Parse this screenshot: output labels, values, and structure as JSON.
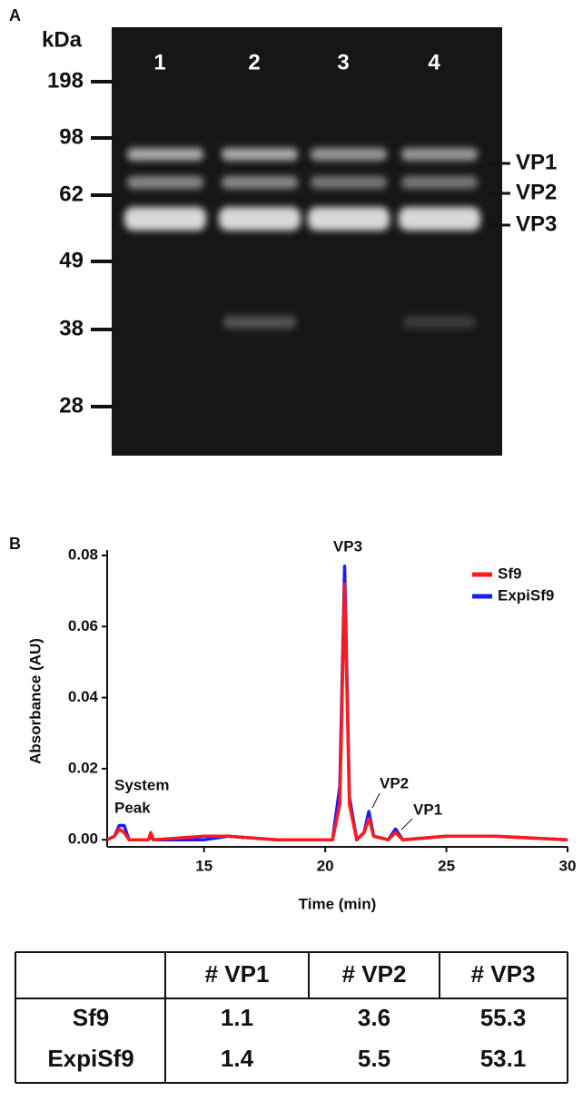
{
  "panel_a": {
    "label": "A",
    "unit_label": "kDa",
    "markers": [
      198,
      98,
      62,
      49,
      38,
      28
    ],
    "lanes": [
      "1",
      "2",
      "3",
      "4"
    ],
    "bands": [
      "VP1",
      "VP2",
      "VP3"
    ]
  },
  "panel_b": {
    "label": "B",
    "chart_data": {
      "type": "line",
      "x_label": "Time (min)",
      "y_label": "Absorbance (AU)",
      "x": [
        11,
        11.3,
        11.5,
        11.7,
        11.9,
        12.7,
        12.8,
        12.9,
        15,
        16,
        18,
        20.3,
        20.6,
        20.8,
        21.0,
        21.3,
        21.6,
        21.8,
        22.0,
        22.6,
        22.9,
        23.2,
        25,
        27,
        30
      ],
      "series": [
        {
          "name": "Sf9",
          "color": "#ff1a1a",
          "values": [
            0,
            0.001,
            0.003,
            0.002,
            0,
            0,
            0.002,
            0,
            0.001,
            0.001,
            0,
            0,
            0.01,
            0.072,
            0.01,
            0,
            0.002,
            0.006,
            0.001,
            0,
            0.002,
            0,
            0.001,
            0.001,
            0
          ]
        },
        {
          "name": "ExpiSf9",
          "color": "#1a1aff",
          "values": [
            0,
            0.001,
            0.004,
            0.004,
            0,
            0,
            0.001,
            0,
            0,
            0.001,
            0,
            0,
            0.015,
            0.077,
            0.012,
            0,
            0.002,
            0.008,
            0.001,
            0,
            0.003,
            0,
            0.001,
            0.001,
            0
          ]
        }
      ],
      "xlim": [
        11,
        30
      ],
      "xticks": [
        15,
        20,
        25,
        30
      ],
      "ylim": [
        -0.002,
        0.08
      ],
      "yticks": [
        {
          "value": 0,
          "label": "0.00"
        },
        {
          "value": 0.02,
          "label": "0.02"
        },
        {
          "value": 0.04,
          "label": "0.04"
        },
        {
          "value": 0.06,
          "label": "0.06"
        },
        {
          "value": 0.08,
          "label": "0.08"
        }
      ],
      "annotations": [
        "VP3",
        "VP2",
        "VP1",
        "System",
        "Peak"
      ],
      "legend": "upper right"
    }
  },
  "table": {
    "columns": [
      "# VP1",
      "# VP2",
      "# VP3"
    ],
    "rows": [
      {
        "label": "Sf9",
        "values": [
          1.1,
          3.6,
          55.3
        ]
      },
      {
        "label": "ExpiSf9",
        "values": [
          1.4,
          5.5,
          53.1
        ]
      }
    ]
  }
}
